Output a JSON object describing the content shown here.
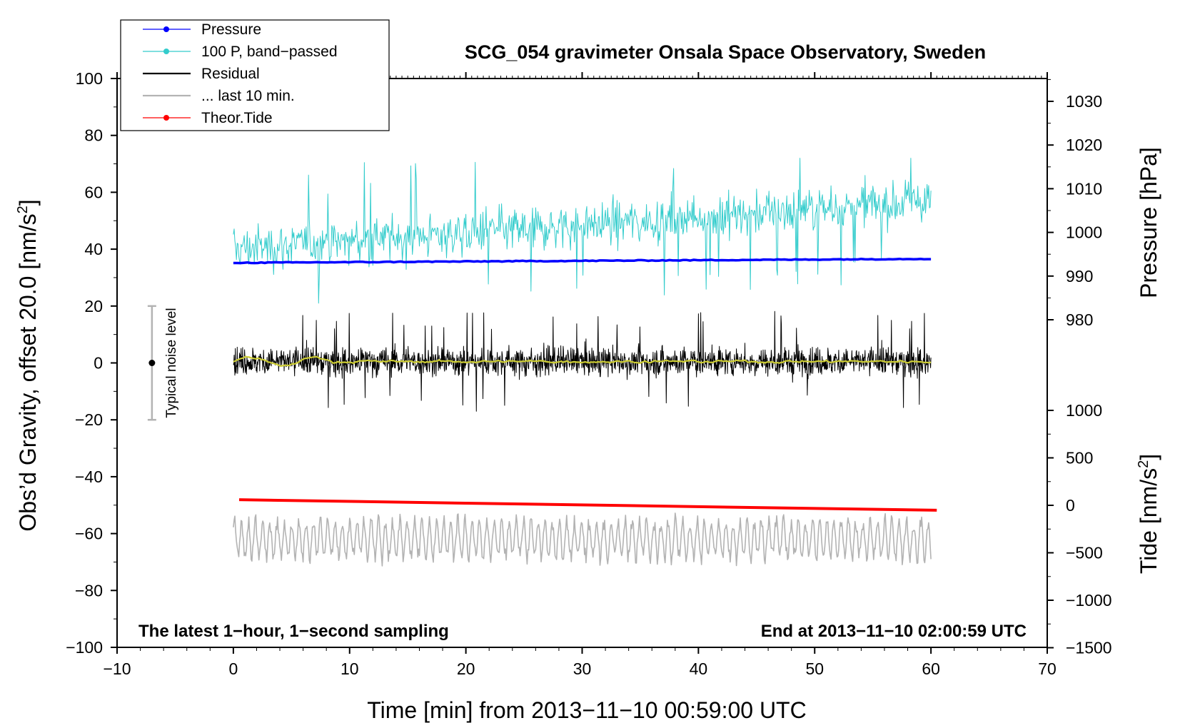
{
  "chart_data": {
    "type": "line",
    "title": "SCG_054 gravimeter Onsala Space Observatory, Sweden",
    "xlabel": "Time [min] from 2013−11−10 00:59:00 UTC",
    "ylabel_main": "Obs’d Gravity, offset 20.0 [nm/s",
    "ylabel_main_sup": "2",
    "ylabel_main_end": "]",
    "ylabel_pressure": "Pressure [hPa]",
    "ylabel_tide": "Tide [nm/s",
    "ylabel_tide_sup": "2",
    "ylabel_tide_end": "]",
    "xlim": [
      -10,
      70
    ],
    "ylim": [
      -100,
      100
    ],
    "x_ticks": [
      "−10",
      "0",
      "10",
      "20",
      "30",
      "40",
      "50",
      "60",
      "70"
    ],
    "y_ticks": [
      "−100",
      "−80",
      "−60",
      "−40",
      "−20",
      "0",
      "20",
      "40",
      "60",
      "80",
      "100"
    ],
    "pressure_ticks": [
      "980",
      "990",
      "1000",
      "1010",
      "1020",
      "1030"
    ],
    "tide_ticks": [
      "−1500",
      "−1000",
      "−500",
      "0",
      "500",
      "1000"
    ],
    "annotation_left": "The latest 1−hour, 1−second sampling",
    "annotation_right": "End at 2013−11−10 02:00:59 UTC",
    "noise_label": "Typical noise level",
    "noise_bar": {
      "x": -7,
      "center": 0,
      "low": -20,
      "high": 20
    },
    "legend": [
      {
        "label": "Pressure",
        "color": "#0000ff",
        "marker": true
      },
      {
        "label": "100 P, band−passed",
        "color": "#33cccc",
        "marker": true
      },
      {
        "label": "Residual",
        "color": "#000000",
        "marker": false
      },
      {
        "label": "... last 10 min.",
        "color": "#b3b3b3",
        "marker": false
      },
      {
        "label": "Theor.Tide",
        "color": "#ff0000",
        "marker": true
      }
    ],
    "series": [
      {
        "name": "Pressure",
        "color": "#0000ff",
        "x_range": [
          0,
          60
        ],
        "y_start": 35.2,
        "y_end": 36.6,
        "noise_amplitude": 0.3
      },
      {
        "name": "100 P, band−passed",
        "color": "#33cccc",
        "x_range": [
          0,
          60
        ],
        "y_start": 40,
        "y_end": 57,
        "noise_amplitude": 12,
        "y_min": 21,
        "y_max": 72
      },
      {
        "name": "Residual",
        "color": "#000000",
        "x_range": [
          0,
          60
        ],
        "y_mean": 0.5,
        "noise_amplitude": 7,
        "y_min": -18,
        "y_max": 21
      },
      {
        "name": "smoothed residual",
        "color": "#cccc33",
        "x_range": [
          0,
          60
        ],
        "y_mean": 0.5,
        "noise_amplitude": 1
      },
      {
        "name": "... last 10 min.",
        "color": "#b3b3b3",
        "x_range": [
          0,
          60
        ],
        "y_mean": -62,
        "noise_amplitude": 7,
        "y_min": -79,
        "y_max": -47
      },
      {
        "name": "Theor.Tide",
        "color": "#ff0000",
        "x_range": [
          0.5,
          60.5
        ],
        "y_start": -48.1,
        "y_end": -51.8
      }
    ]
  }
}
